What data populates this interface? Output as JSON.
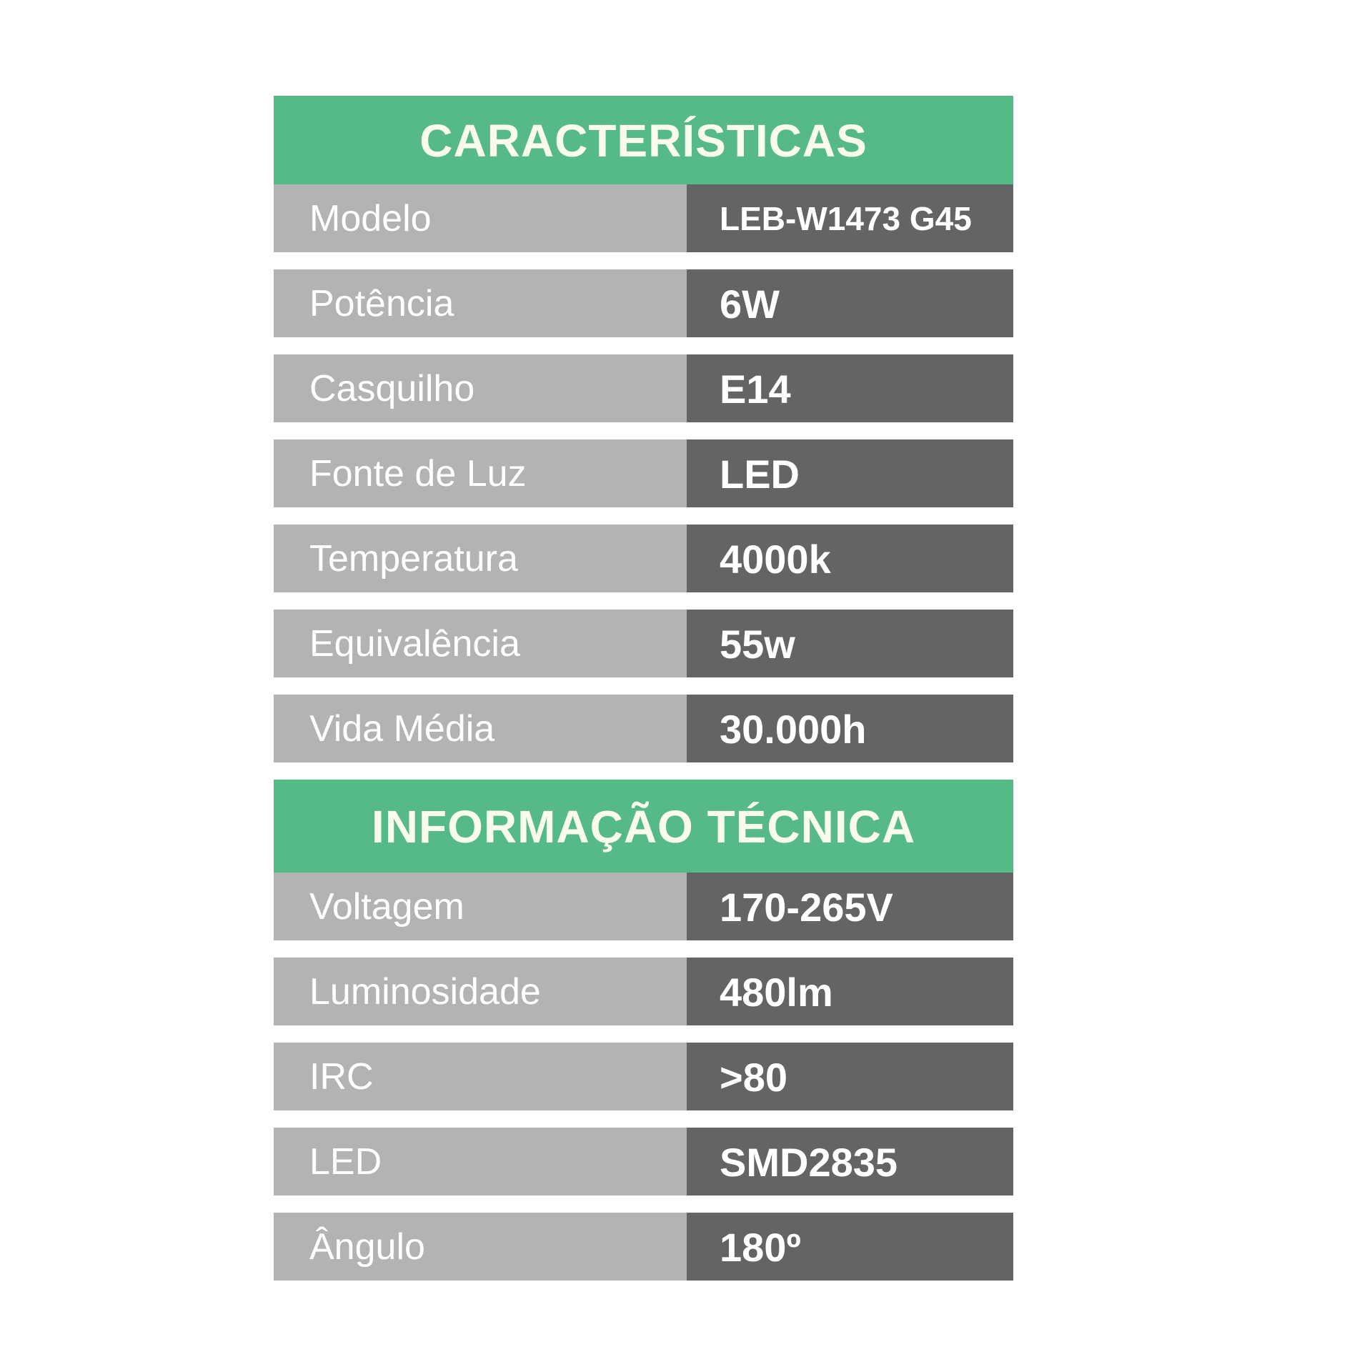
{
  "colors": {
    "green": "#56ba86",
    "header_text": "#f9fcea",
    "label_bg": "#b2b4b3",
    "label_text": "#ffffff",
    "value_bg": "#626465",
    "value_text": "#ffffff",
    "page_bg": "#ffffff"
  },
  "sections": [
    {
      "title": "CARACTERÍSTICAS",
      "rows": [
        {
          "label": "Modelo",
          "value": "LEB-W1473 G45"
        },
        {
          "label": "Potência",
          "value": "6W"
        },
        {
          "label": "Casquilho",
          "value": "E14"
        },
        {
          "label": "Fonte de Luz",
          "value": "LED"
        },
        {
          "label": "Temperatura",
          "value": "4000k"
        },
        {
          "label": "Equivalência",
          "value": "55w"
        },
        {
          "label": "Vida Média",
          "value": "30.000h"
        }
      ]
    },
    {
      "title": "INFORMAÇÃO TÉCNICA",
      "rows": [
        {
          "label": "Voltagem",
          "value": "170-265V"
        },
        {
          "label": "Luminosidade",
          "value": "480lm"
        },
        {
          "label": "IRC",
          "value": ">80"
        },
        {
          "label": "LED",
          "value": "SMD2835"
        },
        {
          "label": "Ângulo",
          "value": "180º"
        }
      ]
    }
  ]
}
